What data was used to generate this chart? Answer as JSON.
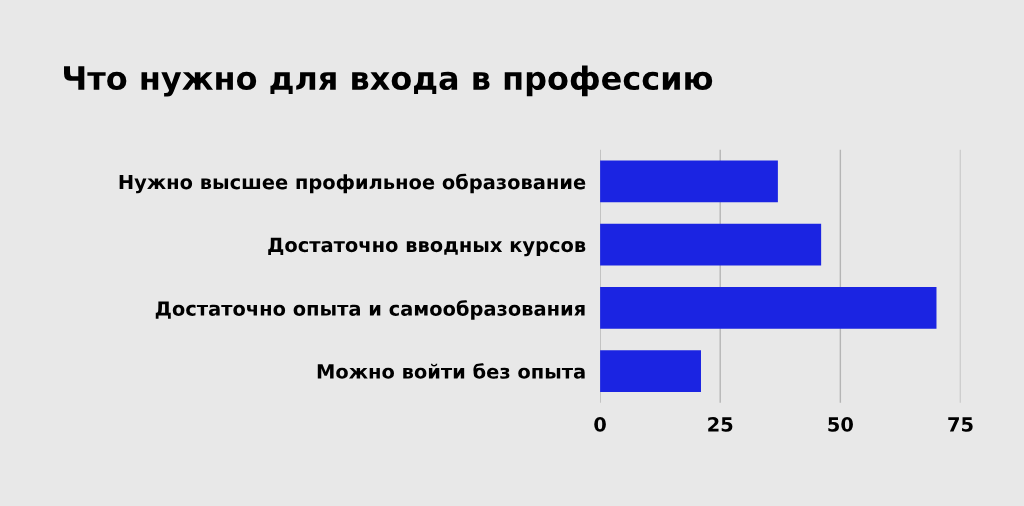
{
  "chart_data": {
    "type": "bar",
    "orientation": "horizontal",
    "title": "Что нужно для входа в профессию",
    "categories": [
      "Нужно высшее профильное образование",
      "Достаточно вводных курсов",
      "Достаточно опыта и самообразования",
      "Можно войти без опыта"
    ],
    "values": [
      37,
      46,
      70,
      21
    ],
    "color": "#1b24e2",
    "xlim": [
      0,
      75
    ],
    "xticks": [
      0,
      25,
      50,
      75
    ],
    "grid": "x"
  }
}
